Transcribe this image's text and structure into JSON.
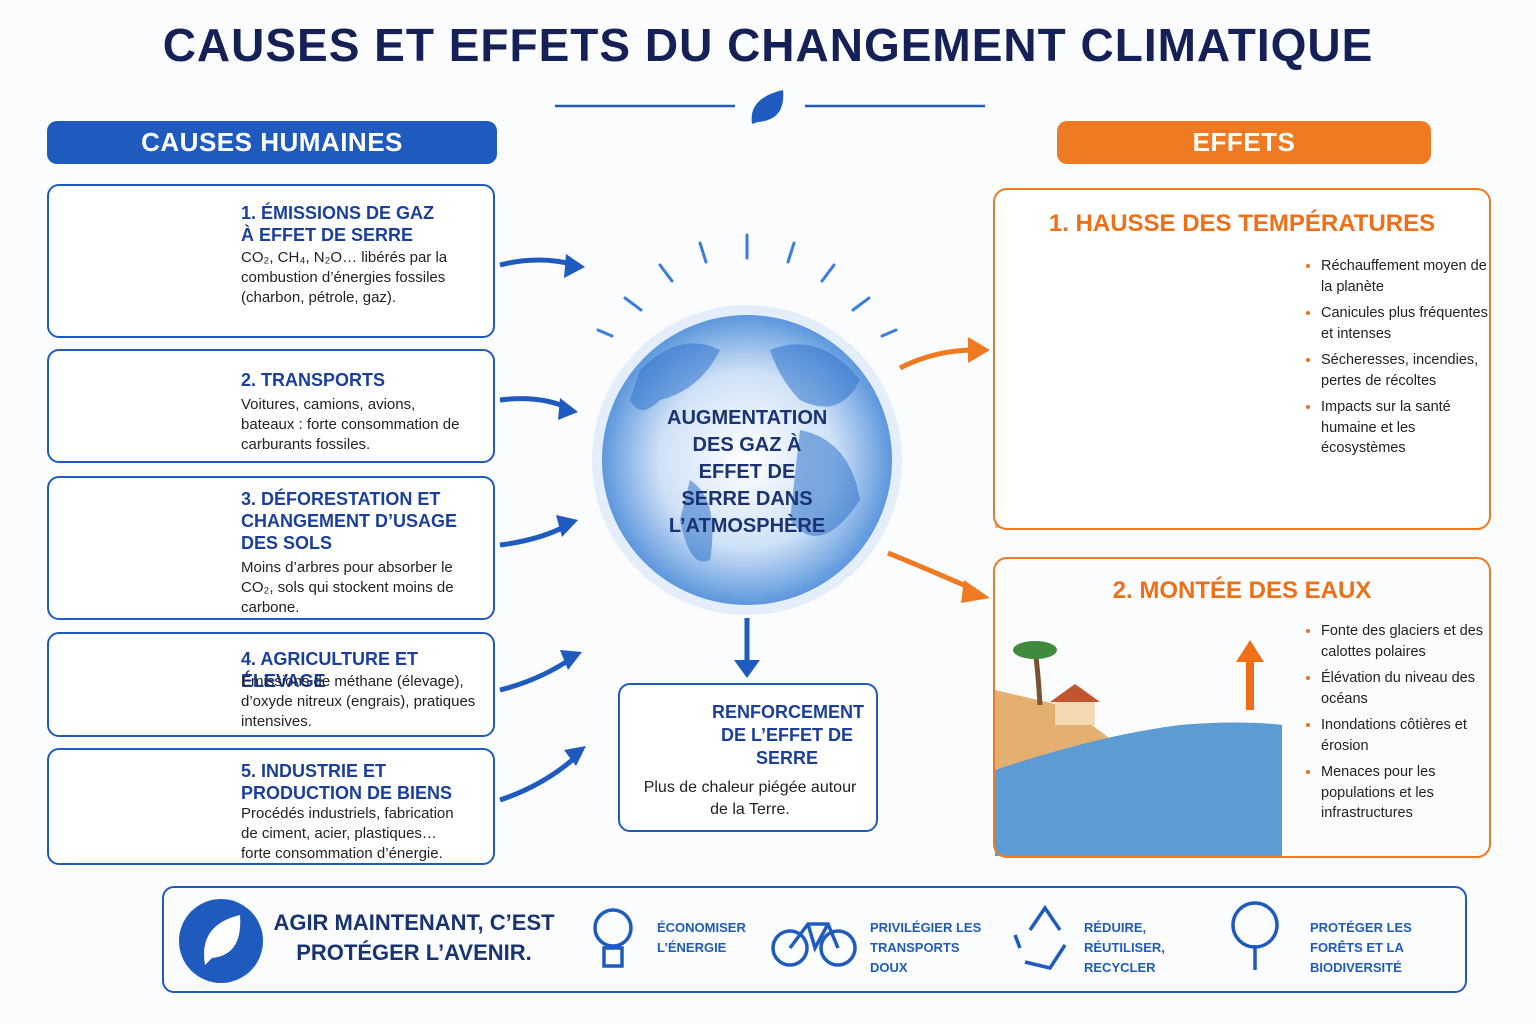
{
  "title": "CAUSES ET EFFETS DU CHANGEMENT CLIMATIQUE",
  "causes": {
    "heading": "CAUSES HUMAINES",
    "items": [
      {
        "title": "1. ÉMISSIONS DE GAZ À EFFET DE SERRE",
        "text": "CO₂, CH₄, N₂O… libérés par la combustion d’énergies fossiles (charbon, pétrole, gaz)."
      },
      {
        "title": "2. TRANSPORTS",
        "text": "Voitures, camions, avions, bateaux : forte consommation de carburants fossiles."
      },
      {
        "title": "3. DÉFORESTATION ET CHANGEMENT D’USAGE DES SOLS",
        "text": "Moins d’arbres pour absorber le CO₂, sols qui stockent moins de carbone."
      },
      {
        "title": "4. AGRICULTURE ET ÉLEVAGE",
        "text": "Émissions de méthane (élevage), d’oxyde nitreux (engrais), pratiques intensives."
      },
      {
        "title": "5. INDUSTRIE ET PRODUCTION DE BIENS",
        "text": "Procédés industriels, fabrication de ciment, acier, plastiques… forte consommation d’énergie."
      }
    ]
  },
  "center": {
    "globe_label": "AUGMENTATION DES GAZ À EFFET DE SERRE DANS L’ATMOSPHÈRE",
    "result": {
      "title": "RENFORCEMENT DE L’EFFET DE SERRE",
      "text": "Plus de chaleur piégée autour de la Terre."
    }
  },
  "effects": {
    "heading": "EFFETS",
    "items": [
      {
        "title": "1. HAUSSE DES TEMPÉRATURES",
        "bullets": [
          "Réchauffement moyen de la planète",
          "Canicules plus fréquentes et intenses",
          "Sécheresses, incendies, pertes de récoltes",
          "Impacts sur la santé humaine et les écosystèmes"
        ]
      },
      {
        "title": "2. MONTÉE DES EAUX",
        "bullets": [
          "Fonte des glaciers et des calottes polaires",
          "Élévation du niveau des océans",
          "Inondations côtières et érosion",
          "Menaces pour les populations et les infrastructures"
        ]
      }
    ]
  },
  "footer": {
    "slogan": "AGIR MAINTENANT, C’EST PROTÉGER L’AVENIR.",
    "actions": [
      "ÉCONOMISER L’ÉNERGIE",
      "PRIVILÉGIER LES TRANSPORTS DOUX",
      "RÉDUIRE, RÉUTILISER, RECYCLER",
      "PROTÉGER LES FORÊTS ET LA BIODIVERSITÉ"
    ]
  }
}
